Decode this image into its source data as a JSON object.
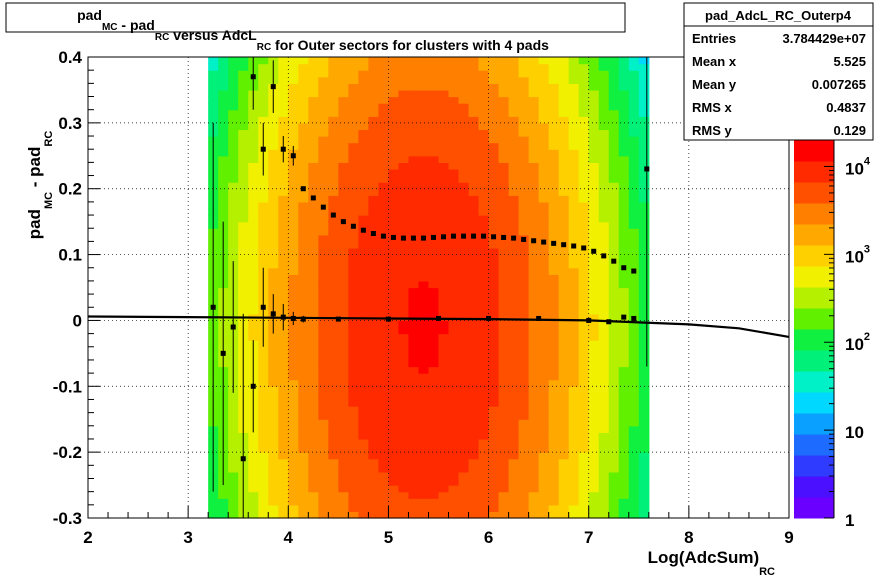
{
  "chart_data": {
    "type": "heatmap",
    "title": {
      "parts": [
        {
          "text": "pad",
          "sub": "MC"
        },
        {
          "text": " - pad",
          "sub": "RC"
        },
        {
          "text": " versus AdcL",
          "sub": "RC"
        },
        {
          "text": " for Outer sectors for clusters with 4 pads",
          "sub": ""
        }
      ]
    },
    "xlabel": {
      "text": "Log(AdcSum)",
      "sub": "RC"
    },
    "ylabel": {
      "text": "pad",
      "sub1": "MC",
      "mid": " - pad",
      "sub2": "RC"
    },
    "xlim": [
      2,
      9
    ],
    "ylim": [
      -0.3,
      0.4
    ],
    "x_ticks": [
      2,
      3,
      4,
      5,
      6,
      7,
      8,
      9
    ],
    "y_ticks": [
      -0.3,
      -0.2,
      -0.1,
      0,
      0.1,
      0.2,
      0.3,
      0.4
    ],
    "y_tick_labels": [
      "-0.3",
      "-0.2",
      "-0.1",
      "0",
      "0.1",
      "0.2",
      "0.3",
      "0.4"
    ],
    "grid": true,
    "z_scale": "log",
    "z_range": [
      1,
      20000
    ],
    "z_ticks": [
      {
        "value": 1,
        "base": "1",
        "exp": ""
      },
      {
        "value": 10,
        "base": "10",
        "exp": ""
      },
      {
        "value": 100,
        "base": "10",
        "exp": "2"
      },
      {
        "value": 1000,
        "base": "10",
        "exp": "3"
      },
      {
        "value": 10000,
        "base": "10",
        "exp": "4"
      }
    ],
    "palette": [
      "#6a00ff",
      "#4a10ff",
      "#2f3bff",
      "#1e6cff",
      "#0aa0ff",
      "#00d8ff",
      "#00f0c8",
      "#00f07a",
      "#10f040",
      "#60f000",
      "#b4f000",
      "#f0f000",
      "#ffd000",
      "#ffa800",
      "#ff8000",
      "#ff5000",
      "#ff2a00",
      "#ff0000"
    ],
    "density": {
      "x_center": 5.35,
      "x_sigma": 0.72,
      "y_center": -0.01,
      "y_sigma": 0.24,
      "peak": 12000
    },
    "stats": {
      "name": "pad_AdcL_RC_Outerp4",
      "rows": [
        {
          "label": "Entries",
          "value": "3.784429e+07"
        },
        {
          "label": "Mean x",
          "value": "5.525"
        },
        {
          "label": "Mean y",
          "value": "0.007265"
        },
        {
          "label": "RMS x",
          "value": "0.4837"
        },
        {
          "label": "RMS y",
          "value": "0.129"
        }
      ]
    },
    "series": [
      {
        "name": "",
        "style": "errorbar",
        "points": [
          [
            3.25,
            0.02,
            0.28
          ],
          [
            3.35,
            -0.05,
            0.2
          ],
          [
            3.45,
            -0.01,
            0.1
          ],
          [
            3.55,
            -0.21,
            0.22
          ],
          [
            3.65,
            -0.1,
            0.07
          ],
          [
            3.75,
            0.02,
            0.06
          ],
          [
            3.85,
            0.01,
            0.03
          ],
          [
            3.95,
            0.005,
            0.02
          ],
          [
            4.05,
            0.003,
            0.01
          ],
          [
            4.15,
            0.002,
            0.005
          ],
          [
            4.5,
            0.002,
            0
          ],
          [
            5.0,
            0.002,
            0
          ],
          [
            5.5,
            0.003,
            0
          ],
          [
            6.0,
            0.003,
            0
          ],
          [
            6.5,
            0.003,
            0
          ],
          [
            7.0,
            0.0,
            0
          ],
          [
            7.2,
            -0.002,
            0
          ],
          [
            7.35,
            0.005,
            0
          ],
          [
            7.45,
            0.003,
            0
          ]
        ]
      },
      {
        "name": "",
        "style": "errorbar",
        "points": [
          [
            3.65,
            0.37,
            0.05
          ],
          [
            3.75,
            0.26,
            0.04
          ],
          [
            3.85,
            0.355,
            0.04
          ],
          [
            3.95,
            0.26,
            0.02
          ],
          [
            4.05,
            0.25,
            0.015
          ],
          [
            4.15,
            0.2,
            0
          ],
          [
            4.25,
            0.186,
            0
          ],
          [
            4.35,
            0.172,
            0
          ],
          [
            4.45,
            0.16,
            0
          ],
          [
            4.55,
            0.15,
            0
          ],
          [
            4.65,
            0.143,
            0
          ],
          [
            4.75,
            0.137,
            0
          ],
          [
            4.85,
            0.132,
            0
          ],
          [
            4.95,
            0.128,
            0
          ],
          [
            5.05,
            0.126,
            0
          ],
          [
            5.15,
            0.125,
            0
          ],
          [
            5.25,
            0.125,
            0
          ],
          [
            5.35,
            0.125,
            0
          ],
          [
            5.45,
            0.126,
            0
          ],
          [
            5.55,
            0.127,
            0
          ],
          [
            5.65,
            0.128,
            0
          ],
          [
            5.75,
            0.128,
            0
          ],
          [
            5.85,
            0.128,
            0
          ],
          [
            5.95,
            0.128,
            0
          ],
          [
            6.05,
            0.127,
            0
          ],
          [
            6.15,
            0.126,
            0
          ],
          [
            6.25,
            0.125,
            0
          ],
          [
            6.35,
            0.123,
            0
          ],
          [
            6.45,
            0.121,
            0
          ],
          [
            6.55,
            0.119,
            0
          ],
          [
            6.65,
            0.117,
            0
          ],
          [
            6.75,
            0.115,
            0
          ],
          [
            6.85,
            0.113,
            0
          ],
          [
            6.95,
            0.11,
            0
          ],
          [
            7.05,
            0.105,
            0
          ],
          [
            7.15,
            0.098,
            0
          ],
          [
            7.25,
            0.09,
            0
          ],
          [
            7.35,
            0.08,
            0
          ],
          [
            7.45,
            0.075,
            0
          ],
          [
            7.58,
            0.23,
            0.3
          ]
        ]
      },
      {
        "name": "",
        "style": "line",
        "points": [
          [
            2.0,
            0.006
          ],
          [
            3.0,
            0.005
          ],
          [
            4.0,
            0.004
          ],
          [
            5.0,
            0.003
          ],
          [
            6.0,
            0.002
          ],
          [
            7.0,
            0.0
          ],
          [
            7.5,
            -0.003
          ],
          [
            8.0,
            -0.006
          ],
          [
            8.5,
            -0.012
          ],
          [
            9.0,
            -0.025
          ]
        ]
      }
    ]
  }
}
